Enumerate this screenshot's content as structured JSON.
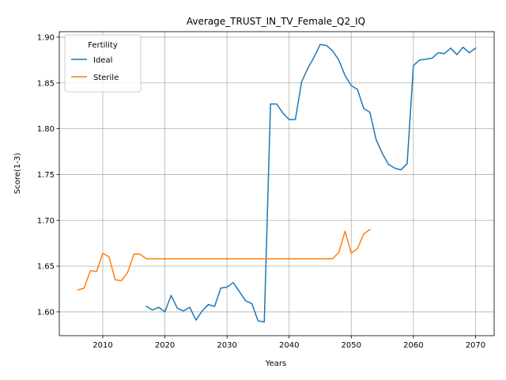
{
  "chart_data": {
    "type": "line",
    "title": "Average_TRUST_IN_TV_Female_Q2_IQ",
    "xlabel": "Years",
    "ylabel": "Score(1-3)",
    "xlim": [
      2003,
      2073
    ],
    "ylim": [
      1.574,
      1.906
    ],
    "xticks": [
      2010,
      2020,
      2030,
      2040,
      2050,
      2060,
      2070
    ],
    "yticks": [
      1.6,
      1.65,
      1.7,
      1.75,
      1.8,
      1.85,
      1.9
    ],
    "xtick_labels": [
      "2010",
      "2020",
      "2030",
      "2040",
      "2050",
      "2060",
      "2070"
    ],
    "ytick_labels": [
      "1.60",
      "1.65",
      "1.70",
      "1.75",
      "1.80",
      "1.85",
      "1.90"
    ],
    "grid": true,
    "legend": {
      "title": "Fertility",
      "position": "top-left"
    },
    "series": [
      {
        "name": "Ideal",
        "color": "#1f77b4",
        "x": [
          2017,
          2018,
          2019,
          2020,
          2021,
          2022,
          2023,
          2024,
          2025,
          2026,
          2027,
          2028,
          2029,
          2030,
          2031,
          2032,
          2033,
          2034,
          2035,
          2036,
          2037,
          2038,
          2039,
          2040,
          2041,
          2042,
          2043,
          2044,
          2045,
          2046,
          2047,
          2048,
          2049,
          2050,
          2051,
          2052,
          2053,
          2054,
          2055,
          2056,
          2057,
          2058,
          2059,
          2060,
          2061,
          2062,
          2063,
          2064,
          2065,
          2066,
          2067,
          2068,
          2069,
          2070
        ],
        "y": [
          1.606,
          1.602,
          1.605,
          1.6,
          1.618,
          1.604,
          1.601,
          1.605,
          1.591,
          1.601,
          1.608,
          1.606,
          1.626,
          1.627,
          1.632,
          1.622,
          1.612,
          1.609,
          1.59,
          1.589,
          1.827,
          1.827,
          1.817,
          1.81,
          1.81,
          1.851,
          1.866,
          1.878,
          1.892,
          1.891,
          1.885,
          1.875,
          1.858,
          1.847,
          1.843,
          1.822,
          1.818,
          1.788,
          1.773,
          1.761,
          1.757,
          1.755,
          1.762,
          1.869,
          1.875,
          1.876,
          1.877,
          1.883,
          1.882,
          1.888,
          1.881,
          1.889,
          1.883,
          1.888
        ]
      },
      {
        "name": "Sterile",
        "color": "#ff7f0e",
        "x": [
          2006,
          2007,
          2008,
          2009,
          2010,
          2011,
          2012,
          2013,
          2014,
          2015,
          2016,
          2017,
          2018,
          2019,
          2020,
          2021,
          2022,
          2023,
          2024,
          2025,
          2026,
          2027,
          2028,
          2029,
          2030,
          2031,
          2032,
          2033,
          2034,
          2035,
          2036,
          2037,
          2038,
          2039,
          2040,
          2041,
          2042,
          2043,
          2044,
          2045,
          2046,
          2047,
          2048,
          2049,
          2050,
          2051,
          2052,
          2053
        ],
        "y": [
          1.624,
          1.626,
          1.645,
          1.644,
          1.664,
          1.66,
          1.635,
          1.634,
          1.643,
          1.663,
          1.663,
          1.658,
          1.658,
          1.658,
          1.658,
          1.658,
          1.658,
          1.658,
          1.658,
          1.658,
          1.658,
          1.658,
          1.658,
          1.658,
          1.658,
          1.658,
          1.658,
          1.658,
          1.658,
          1.658,
          1.658,
          1.658,
          1.658,
          1.658,
          1.658,
          1.658,
          1.658,
          1.658,
          1.658,
          1.658,
          1.658,
          1.658,
          1.665,
          1.688,
          1.664,
          1.669,
          1.685,
          1.69
        ]
      }
    ]
  }
}
